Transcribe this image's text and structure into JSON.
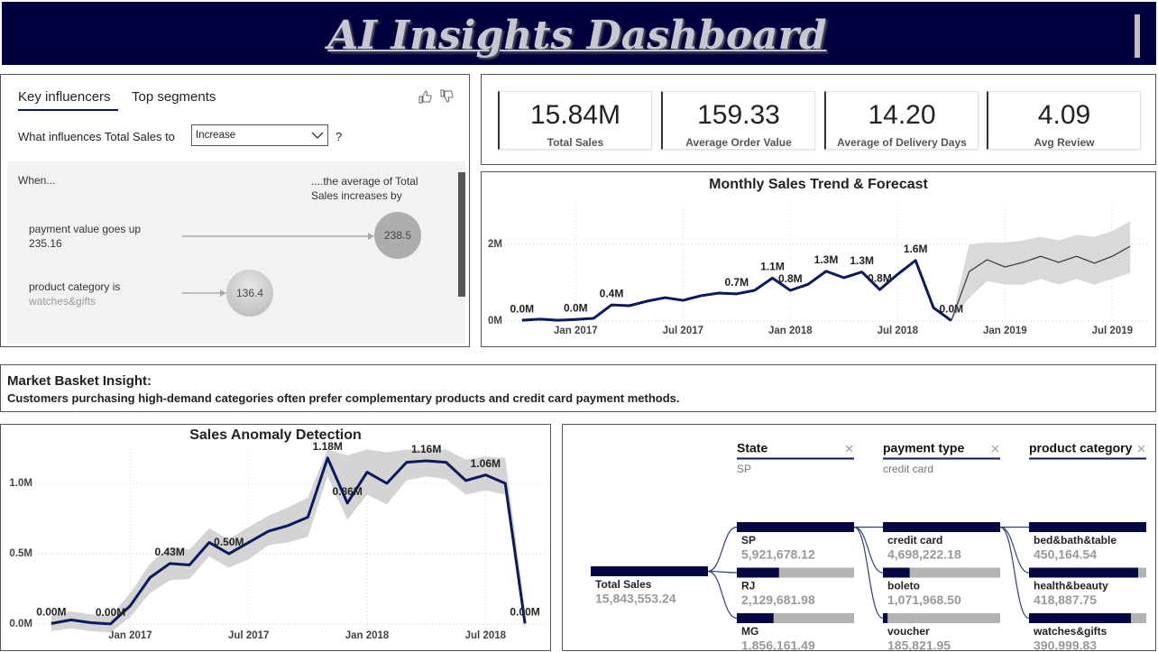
{
  "header": {
    "title": "AI Insights Dashboard"
  },
  "key_influencers": {
    "tabs": [
      "Key influencers",
      "Top segments"
    ],
    "question": "What influences Total Sales to",
    "dropdown": "Increase",
    "help": "?",
    "when": "When...",
    "result_header": "....the average of Total Sales increases by",
    "influencers": [
      {
        "condition": "payment value goes up",
        "detail": 235.16,
        "value": 238.5
      },
      {
        "condition": "product category is",
        "detail": "watches&gifts",
        "value": 136.4
      }
    ]
  },
  "kpis": [
    {
      "value": "15.84M",
      "label": "Total Sales"
    },
    {
      "value": "159.33",
      "label": "Average Order Value"
    },
    {
      "value": "14.20",
      "label": "Average of Delivery Days"
    },
    {
      "value": "4.09",
      "label": "Avg Review"
    }
  ],
  "insight": {
    "title": "Market Basket Insight:",
    "text": "Customers purchasing high-demand categories often prefer complementary products and credit card payment methods."
  },
  "chart_data": [
    {
      "type": "line",
      "title": "Monthly Sales Trend & Forecast",
      "x": [
        "2016-10",
        "2016-11",
        "2016-12",
        "2017-01",
        "2017-02",
        "2017-03",
        "2017-04",
        "2017-05",
        "2017-06",
        "2017-07",
        "2017-08",
        "2017-09",
        "2017-10",
        "2017-11",
        "2017-12",
        "2018-01",
        "2018-02",
        "2018-03",
        "2018-04",
        "2018-05",
        "2018-06",
        "2018-07",
        "2018-08",
        "2018-09",
        "2018-10",
        "2018-11",
        "2018-12",
        "2019-01",
        "2019-02",
        "2019-03",
        "2019-04",
        "2019-05",
        "2019-06",
        "2019-07",
        "2019-08"
      ],
      "xlim": [
        "2016-09",
        "2019-09"
      ],
      "xticks": [
        {
          "value": "2017-01",
          "label": "Jan 2017"
        },
        {
          "value": "2017-07",
          "label": "Jul 2017"
        },
        {
          "value": "2018-01",
          "label": "Jan 2018"
        },
        {
          "value": "2018-07",
          "label": "Jul 2018"
        },
        {
          "value": "2019-01",
          "label": "Jan 2019"
        },
        {
          "value": "2019-07",
          "label": "Jul 2019"
        }
      ],
      "ylim": [
        0,
        3
      ],
      "yticks": [
        {
          "value": 0,
          "label": "0M"
        },
        {
          "value": 2,
          "label": "2M"
        }
      ],
      "grid": true,
      "band": {
        "color": "#d9d9d9",
        "lower": [
          null,
          null,
          null,
          null,
          null,
          null,
          null,
          null,
          null,
          null,
          null,
          null,
          null,
          null,
          null,
          null,
          null,
          null,
          null,
          null,
          null,
          null,
          null,
          null,
          0.01,
          0.6,
          1.05,
          0.95,
          0.95,
          1.1,
          0.95,
          1.1,
          0.95,
          1.1,
          1.25
        ],
        "upper": [
          null,
          null,
          null,
          null,
          null,
          null,
          null,
          null,
          null,
          null,
          null,
          null,
          null,
          null,
          null,
          null,
          null,
          null,
          null,
          null,
          null,
          null,
          null,
          null,
          0.01,
          2.0,
          2.05,
          2.05,
          2.1,
          2.2,
          2.1,
          2.25,
          2.2,
          2.35,
          2.6
        ]
      },
      "series": [
        {
          "color": "#0b1a5a",
          "values": [
            0.02,
            0.05,
            0.02,
            0.04,
            0.07,
            0.42,
            0.4,
            0.52,
            0.61,
            0.54,
            0.66,
            0.73,
            0.71,
            0.8,
            1.12,
            0.8,
            0.96,
            1.3,
            1.13,
            1.28,
            0.82,
            1.22,
            1.58,
            0.35,
            0.01,
            null,
            null,
            null,
            null,
            null,
            null,
            null,
            null,
            null,
            null
          ],
          "value_labels": [
            "0.0M",
            null,
            null,
            "0.0M",
            null,
            "0.4M",
            null,
            null,
            null,
            null,
            null,
            null,
            "0.7M",
            null,
            "1.1M",
            "0.8M",
            null,
            "1.3M",
            null,
            "1.3M",
            "0.8M",
            null,
            "1.6M",
            null,
            "0.0M",
            null,
            null,
            null,
            null,
            null,
            null,
            null,
            null,
            null,
            null
          ]
        },
        {
          "color": "#333333",
          "values": [
            null,
            null,
            null,
            null,
            null,
            null,
            null,
            null,
            null,
            null,
            null,
            null,
            null,
            null,
            null,
            null,
            null,
            null,
            null,
            null,
            null,
            null,
            null,
            null,
            0.01,
            1.29,
            1.6,
            1.41,
            1.53,
            1.69,
            1.53,
            1.69,
            1.51,
            1.69,
            1.95
          ]
        }
      ]
    },
    {
      "type": "line",
      "title": "Sales Anomaly Detection",
      "x": [
        "2016-09",
        "2016-10",
        "2016-11",
        "2016-12",
        "2017-01",
        "2017-02",
        "2017-03",
        "2017-04",
        "2017-05",
        "2017-06",
        "2017-07",
        "2017-08",
        "2017-09",
        "2017-10",
        "2017-11",
        "2017-12",
        "2018-01",
        "2018-02",
        "2018-03",
        "2018-04",
        "2018-05",
        "2018-06",
        "2018-07",
        "2018-08",
        "2018-09"
      ],
      "xlim": [
        "2016-08",
        "2018-10"
      ],
      "xticks": [
        {
          "value": "2017-01",
          "label": "Jan 2017"
        },
        {
          "value": "2017-07",
          "label": "Jul 2017"
        },
        {
          "value": "2018-01",
          "label": "Jan 2018"
        },
        {
          "value": "2018-07",
          "label": "Jul 2018"
        }
      ],
      "ylim": [
        -0.08,
        1.25
      ],
      "yticks": [
        {
          "value": 0,
          "label": "0.0M"
        },
        {
          "value": 0.5,
          "label": "0.5M"
        },
        {
          "value": 1,
          "label": "1.0M"
        }
      ],
      "grid": true,
      "band": {
        "color": "#d4d4d4",
        "lower": [
          -0.05,
          -0.03,
          -0.05,
          -0.06,
          0.05,
          0.22,
          0.31,
          0.32,
          0.48,
          0.4,
          0.46,
          0.56,
          0.58,
          0.62,
          1.05,
          0.74,
          0.92,
          0.85,
          1.02,
          1.05,
          1.03,
          0.92,
          0.95,
          0.92,
          -0.05
        ],
        "upper": [
          0.06,
          0.09,
          0.07,
          0.06,
          0.22,
          0.43,
          0.55,
          0.53,
          0.68,
          0.6,
          0.69,
          0.77,
          0.83,
          0.9,
          1.24,
          1.2,
          1.24,
          1.22,
          1.24,
          1.24,
          1.24,
          1.17,
          1.19,
          1.18,
          0.1
        ]
      },
      "series": [
        {
          "color": "#0b1a5a",
          "values": [
            0.004,
            0.03,
            0.01,
            0.001,
            0.13,
            0.33,
            0.43,
            0.42,
            0.58,
            0.5,
            0.58,
            0.66,
            0.7,
            0.76,
            1.18,
            0.86,
            1.08,
            1.0,
            1.15,
            1.16,
            1.15,
            1.02,
            1.06,
            1.0,
            0.004
          ],
          "value_labels": [
            "0.00M",
            null,
            null,
            "0.00M",
            null,
            null,
            "0.43M",
            null,
            null,
            "0.50M",
            null,
            null,
            null,
            null,
            "1.18M",
            "0.86M",
            null,
            null,
            null,
            "1.16M",
            null,
            null,
            "1.06M",
            null,
            "0.00M"
          ]
        }
      ]
    }
  ],
  "decomposition_tree": {
    "root": {
      "label": "Total Sales",
      "value": 15843553.24,
      "value_label": "15,843,553.24"
    },
    "levels": [
      {
        "field": "State",
        "selection": "SP",
        "nodes": [
          {
            "label": "SP",
            "value": 5921678.12,
            "value_label": "5,921,678.12"
          },
          {
            "label": "RJ",
            "value": 2129681.98,
            "value_label": "2,129,681.98"
          },
          {
            "label": "MG",
            "value": 1856161.49,
            "value_label": "1,856,161.49"
          }
        ]
      },
      {
        "field": "payment type",
        "selection": "credit card",
        "nodes": [
          {
            "label": "credit card",
            "value": 4698222.18,
            "value_label": "4,698,222.18"
          },
          {
            "label": "boleto",
            "value": 1071968.5,
            "value_label": "1,071,968.50"
          },
          {
            "label": "voucher",
            "value": 185821.95,
            "value_label": "185,821.95"
          }
        ]
      },
      {
        "field": "product category",
        "selection": null,
        "nodes": [
          {
            "label": "bed&bath&table",
            "value": 450164.54,
            "value_label": "450,164.54"
          },
          {
            "label": "health&beauty",
            "value": 418887.75,
            "value_label": "418,887.75"
          },
          {
            "label": "watches&gifts",
            "value": 390999.83,
            "value_label": "390,999.83"
          }
        ]
      }
    ]
  }
}
